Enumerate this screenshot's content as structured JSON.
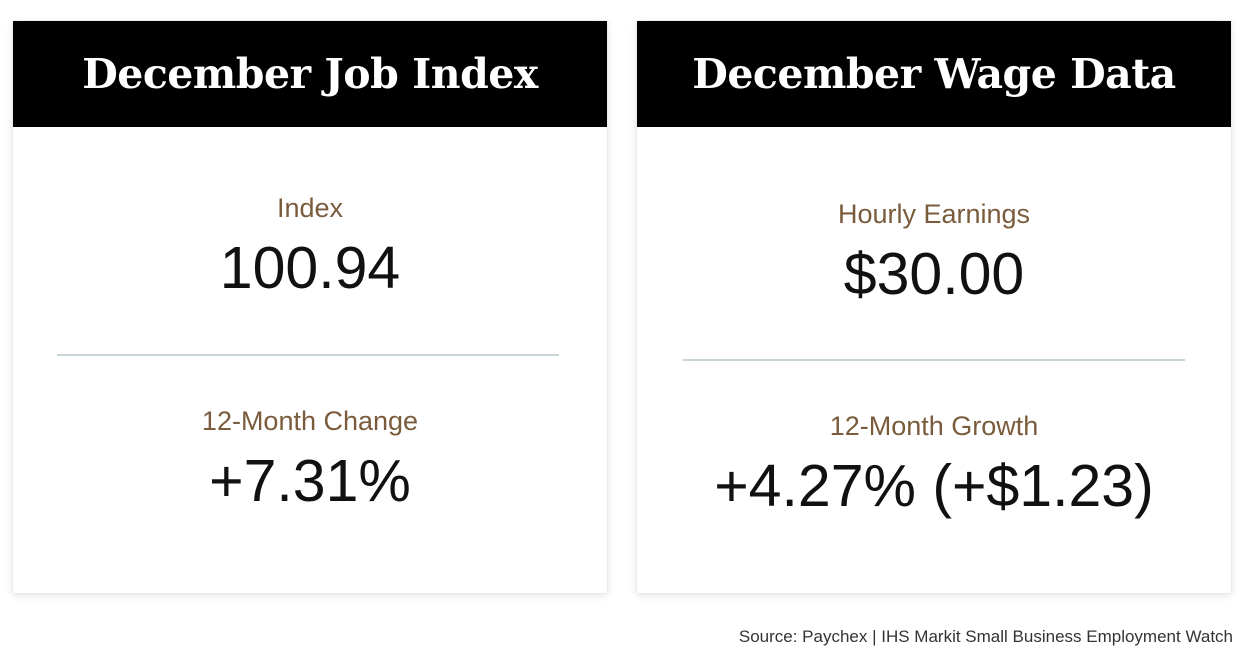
{
  "job_card": {
    "title": "December Job Index",
    "metrics": [
      {
        "label": "Index",
        "value": "100.94"
      },
      {
        "label": "12-Month Change",
        "value": "+7.31%"
      }
    ]
  },
  "wage_card": {
    "title": "December Wage Data",
    "metrics": [
      {
        "label": "Hourly Earnings",
        "value": "$30.00"
      },
      {
        "label": "12-Month Growth",
        "value": "+4.27% (+$1.23)"
      }
    ]
  },
  "footer": {
    "source": "Source: Paychex | IHS Markit Small Business Employment Watch"
  },
  "colors": {
    "header_bg": "#000000",
    "label": "#7a5c3c",
    "value": "#111111",
    "divider": "#c9d6d9"
  }
}
